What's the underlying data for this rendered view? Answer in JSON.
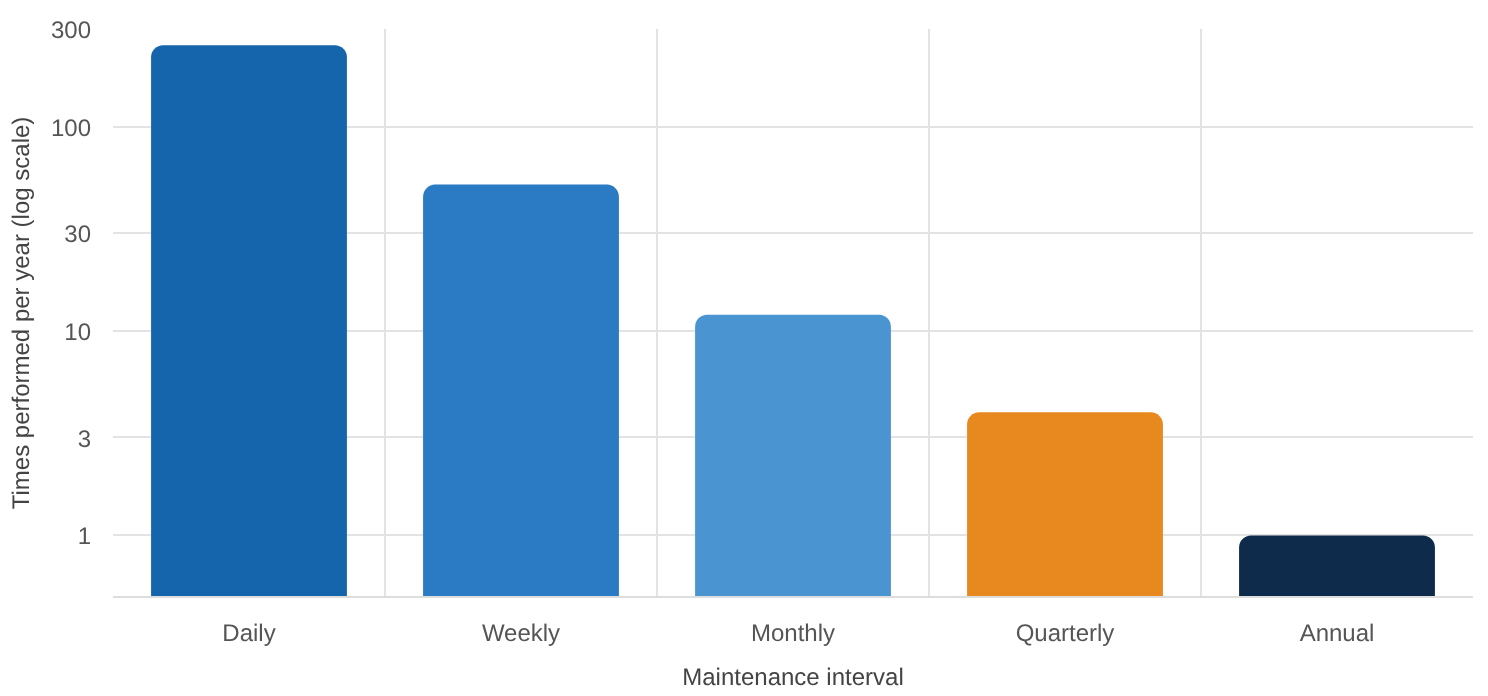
{
  "chart_data": {
    "type": "bar",
    "xlabel": "Maintenance interval",
    "ylabel": "Times performed per year (log scale)",
    "categories": [
      "Daily",
      "Weekly",
      "Monthly",
      "Quarterly",
      "Annual"
    ],
    "values": [
      250,
      52,
      12,
      4,
      1
    ],
    "colors": [
      "#1565ad",
      "#2b7bc4",
      "#4a95d1",
      "#e8891f",
      "#0f2b4c"
    ],
    "log": "y",
    "ylim": [
      0.5,
      300
    ],
    "yticks": [
      1,
      3,
      10,
      30,
      100,
      300
    ],
    "grid": true
  }
}
